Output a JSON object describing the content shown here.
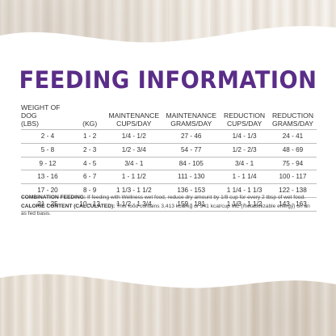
{
  "title": "FEEDING INFORMATION",
  "table": {
    "headers": [
      [
        "WEIGHT OF DOG",
        "(LBS)"
      ],
      [
        "(KG)"
      ],
      [
        "MAINTENANCE",
        "CUPS/DAY"
      ],
      [
        "MAINTENANCE",
        "GRAMS/DAY"
      ],
      [
        "REDUCTION",
        "CUPS/DAY"
      ],
      [
        "REDUCTION",
        "GRAMS/DAY"
      ]
    ],
    "rows": [
      [
        "2 - 4",
        "1 - 2",
        "1/4 - 1/2",
        "27 - 46",
        "1/4 - 1/3",
        "24 - 41"
      ],
      [
        "5 - 8",
        "2 - 3",
        "1/2 - 3/4",
        "54 - 77",
        "1/2 - 2/3",
        "48 - 69"
      ],
      [
        "9 - 12",
        "4 - 5",
        "3/4 - 1",
        "84 - 105",
        "3/4 - 1",
        "75 - 94"
      ],
      [
        "13 - 16",
        "6 - 7",
        "1 - 1 1/2",
        "111 - 130",
        "1 - 1 1/4",
        "100 - 117"
      ],
      [
        "17 - 20",
        "8 - 9",
        "1 1/3 - 1 1/2",
        "136 - 153",
        "1 1/4 - 1 1/3",
        "122 - 138"
      ],
      [
        "21 - 25",
        "10 - 12",
        "1 1/2 - 1 3/4",
        "159 - 181",
        "1 1/3 - 1 1/2",
        "143 - 163"
      ]
    ]
  },
  "notes": {
    "combination_label": "COMBINATION FEEDING:",
    "combination_text": " If feeding with Wellness wet food, reduce dry amount by 1/8 cup for every 2 tbsp of wet food.",
    "calorie_label": "CALORIE CONTENT (CALCULATED):",
    "calorie_text": " This food contains 3,413 kcal/kg or 341 kcal/cup ME (metabolizable energy) on an as fed basis."
  },
  "colors": {
    "title": "#5a2d88",
    "card": "#ffffff",
    "background": "#e9e2d8"
  }
}
